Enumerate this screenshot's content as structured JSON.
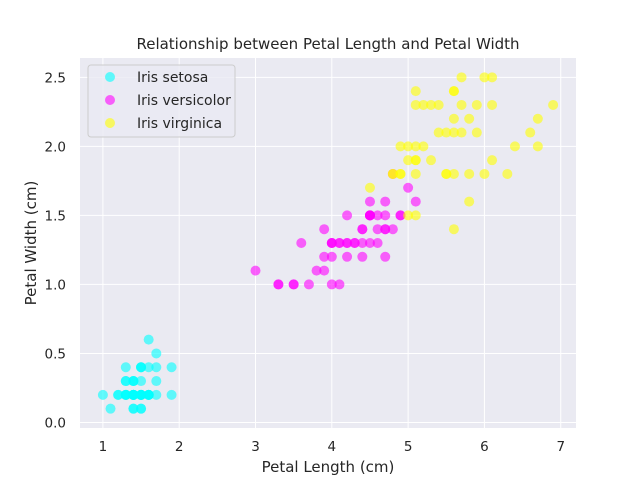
{
  "chart_data": {
    "type": "scatter",
    "title": "Relationship between Petal Length and Petal Width",
    "xlabel": "Petal Length (cm)",
    "ylabel": "Petal Width (cm)",
    "xlim": [
      0.7,
      7.2
    ],
    "ylim": [
      -0.04,
      2.64
    ],
    "xticks": [
      1,
      2,
      3,
      4,
      5,
      6,
      7
    ],
    "yticks": [
      0.0,
      0.5,
      1.0,
      1.5,
      2.0,
      2.5
    ],
    "grid": true,
    "legend_position": "top-left",
    "background": "#eaeaf2",
    "series": [
      {
        "name": "Iris setosa",
        "color": "#00ffff",
        "points": [
          [
            1.4,
            0.2
          ],
          [
            1.4,
            0.2
          ],
          [
            1.3,
            0.2
          ],
          [
            1.5,
            0.2
          ],
          [
            1.4,
            0.2
          ],
          [
            1.7,
            0.4
          ],
          [
            1.4,
            0.3
          ],
          [
            1.5,
            0.2
          ],
          [
            1.4,
            0.2
          ],
          [
            1.5,
            0.1
          ],
          [
            1.5,
            0.2
          ],
          [
            1.6,
            0.2
          ],
          [
            1.4,
            0.1
          ],
          [
            1.1,
            0.1
          ],
          [
            1.2,
            0.2
          ],
          [
            1.5,
            0.4
          ],
          [
            1.3,
            0.4
          ],
          [
            1.4,
            0.3
          ],
          [
            1.7,
            0.3
          ],
          [
            1.5,
            0.3
          ],
          [
            1.7,
            0.2
          ],
          [
            1.5,
            0.4
          ],
          [
            1.0,
            0.2
          ],
          [
            1.7,
            0.5
          ],
          [
            1.9,
            0.2
          ],
          [
            1.6,
            0.2
          ],
          [
            1.6,
            0.4
          ],
          [
            1.5,
            0.2
          ],
          [
            1.4,
            0.2
          ],
          [
            1.6,
            0.2
          ],
          [
            1.6,
            0.2
          ],
          [
            1.5,
            0.4
          ],
          [
            1.5,
            0.1
          ],
          [
            1.4,
            0.2
          ],
          [
            1.5,
            0.2
          ],
          [
            1.2,
            0.2
          ],
          [
            1.3,
            0.2
          ],
          [
            1.4,
            0.1
          ],
          [
            1.3,
            0.2
          ],
          [
            1.5,
            0.2
          ],
          [
            1.3,
            0.3
          ],
          [
            1.3,
            0.3
          ],
          [
            1.3,
            0.2
          ],
          [
            1.6,
            0.6
          ],
          [
            1.9,
            0.4
          ],
          [
            1.4,
            0.3
          ],
          [
            1.6,
            0.2
          ],
          [
            1.4,
            0.2
          ],
          [
            1.5,
            0.2
          ],
          [
            1.4,
            0.2
          ]
        ]
      },
      {
        "name": "Iris versicolor",
        "color": "#ff00ff",
        "points": [
          [
            4.7,
            1.4
          ],
          [
            4.5,
            1.5
          ],
          [
            4.9,
            1.5
          ],
          [
            4.0,
            1.3
          ],
          [
            4.6,
            1.5
          ],
          [
            4.5,
            1.3
          ],
          [
            4.7,
            1.6
          ],
          [
            3.3,
            1.0
          ],
          [
            4.6,
            1.3
          ],
          [
            3.9,
            1.4
          ],
          [
            3.5,
            1.0
          ],
          [
            4.2,
            1.5
          ],
          [
            4.0,
            1.0
          ],
          [
            4.7,
            1.4
          ],
          [
            3.6,
            1.3
          ],
          [
            4.4,
            1.4
          ],
          [
            4.5,
            1.5
          ],
          [
            4.1,
            1.0
          ],
          [
            4.5,
            1.5
          ],
          [
            3.9,
            1.1
          ],
          [
            4.8,
            1.8
          ],
          [
            4.0,
            1.3
          ],
          [
            4.9,
            1.5
          ],
          [
            4.7,
            1.2
          ],
          [
            4.3,
            1.3
          ],
          [
            4.4,
            1.4
          ],
          [
            4.8,
            1.4
          ],
          [
            5.0,
            1.7
          ],
          [
            4.5,
            1.5
          ],
          [
            3.5,
            1.0
          ],
          [
            3.8,
            1.1
          ],
          [
            3.7,
            1.0
          ],
          [
            3.9,
            1.2
          ],
          [
            5.1,
            1.6
          ],
          [
            4.5,
            1.5
          ],
          [
            4.5,
            1.6
          ],
          [
            4.7,
            1.5
          ],
          [
            4.4,
            1.3
          ],
          [
            4.1,
            1.3
          ],
          [
            4.0,
            1.3
          ],
          [
            4.4,
            1.2
          ],
          [
            4.6,
            1.4
          ],
          [
            4.0,
            1.2
          ],
          [
            3.3,
            1.0
          ],
          [
            4.2,
            1.3
          ],
          [
            4.2,
            1.2
          ],
          [
            4.2,
            1.3
          ],
          [
            4.3,
            1.3
          ],
          [
            3.0,
            1.1
          ],
          [
            4.1,
            1.3
          ]
        ]
      },
      {
        "name": "Iris virginica",
        "color": "#ffff00",
        "points": [
          [
            6.0,
            2.5
          ],
          [
            5.1,
            1.9
          ],
          [
            5.9,
            2.1
          ],
          [
            5.6,
            1.8
          ],
          [
            5.8,
            2.2
          ],
          [
            6.6,
            2.1
          ],
          [
            4.5,
            1.7
          ],
          [
            6.3,
            1.8
          ],
          [
            5.8,
            1.8
          ],
          [
            6.1,
            2.5
          ],
          [
            5.1,
            2.0
          ],
          [
            5.3,
            1.9
          ],
          [
            5.5,
            2.1
          ],
          [
            5.0,
            2.0
          ],
          [
            5.1,
            2.4
          ],
          [
            5.3,
            2.3
          ],
          [
            5.5,
            1.8
          ],
          [
            6.7,
            2.2
          ],
          [
            6.9,
            2.3
          ],
          [
            5.0,
            1.5
          ],
          [
            5.7,
            2.3
          ],
          [
            4.9,
            2.0
          ],
          [
            6.7,
            2.0
          ],
          [
            4.9,
            1.8
          ],
          [
            5.7,
            2.1
          ],
          [
            6.0,
            1.8
          ],
          [
            4.8,
            1.8
          ],
          [
            4.9,
            1.8
          ],
          [
            5.6,
            2.1
          ],
          [
            5.8,
            1.6
          ],
          [
            6.1,
            1.9
          ],
          [
            6.4,
            2.0
          ],
          [
            5.6,
            2.2
          ],
          [
            5.1,
            1.5
          ],
          [
            5.6,
            1.4
          ],
          [
            6.1,
            2.3
          ],
          [
            5.6,
            2.4
          ],
          [
            5.5,
            1.8
          ],
          [
            4.8,
            1.8
          ],
          [
            5.4,
            2.1
          ],
          [
            5.6,
            2.4
          ],
          [
            5.1,
            2.3
          ],
          [
            5.1,
            1.9
          ],
          [
            5.9,
            2.3
          ],
          [
            5.7,
            2.5
          ],
          [
            5.2,
            2.3
          ],
          [
            5.0,
            1.9
          ],
          [
            5.2,
            2.0
          ],
          [
            5.4,
            2.3
          ],
          [
            5.1,
            1.8
          ]
        ]
      }
    ]
  }
}
